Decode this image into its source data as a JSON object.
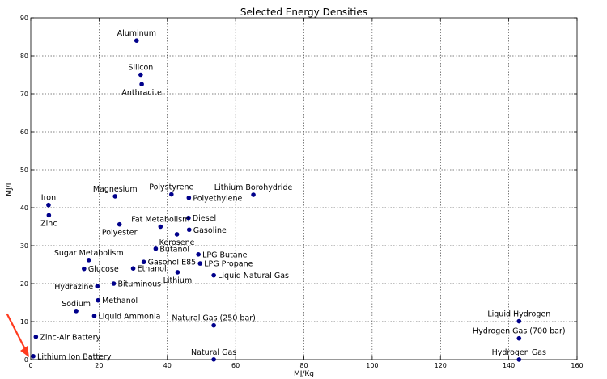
{
  "chart_data": {
    "type": "scatter",
    "title": "Selected Energy Densities",
    "xlabel": "MJ/Kg",
    "ylabel": "MJ/L",
    "xlim": [
      0,
      160
    ],
    "ylim": [
      0,
      90
    ],
    "xticks": [
      0,
      20,
      40,
      60,
      80,
      100,
      120,
      140,
      160
    ],
    "yticks": [
      0,
      10,
      20,
      30,
      40,
      50,
      60,
      70,
      80,
      90
    ],
    "grid": true,
    "marker_color": "#00008b",
    "annotation_color": "#ff3b1f",
    "points": [
      {
        "label": "Aluminum",
        "x": 31,
        "y": 84,
        "label_pos": "above"
      },
      {
        "label": "Silicon",
        "x": 32.2,
        "y": 75,
        "label_pos": "above"
      },
      {
        "label": "Anthracite",
        "x": 32.5,
        "y": 72.5,
        "label_pos": "below"
      },
      {
        "label": "Magnesium",
        "x": 24.7,
        "y": 43,
        "label_pos": "above"
      },
      {
        "label": "Polystyrene",
        "x": 41.2,
        "y": 43.5,
        "label_pos": "above"
      },
      {
        "label": "Polyethylene",
        "x": 46.3,
        "y": 42.6,
        "label_pos": "right"
      },
      {
        "label": "Lithium Borohydride",
        "x": 65.2,
        "y": 43.4,
        "label_pos": "above"
      },
      {
        "label": "Iron",
        "x": 5.2,
        "y": 40.7,
        "label_pos": "above"
      },
      {
        "label": "Zinc",
        "x": 5.3,
        "y": 38.0,
        "label_pos": "below"
      },
      {
        "label": "Diesel",
        "x": 46.2,
        "y": 37.3,
        "label_pos": "right"
      },
      {
        "label": "Fat Metabolism",
        "x": 38,
        "y": 35,
        "label_pos": "above"
      },
      {
        "label": "Gasoline",
        "x": 46.4,
        "y": 34.2,
        "label_pos": "right"
      },
      {
        "label": "Polyester",
        "x": 26,
        "y": 35.6,
        "label_pos": "below"
      },
      {
        "label": "Kerosene",
        "x": 42.8,
        "y": 33.0,
        "label_pos": "below"
      },
      {
        "label": "Butanol",
        "x": 36.6,
        "y": 29.2,
        "label_pos": "right"
      },
      {
        "label": "LPG Butane",
        "x": 49.1,
        "y": 27.7,
        "label_pos": "right"
      },
      {
        "label": "Sugar Metabolism",
        "x": 17,
        "y": 26.2,
        "label_pos": "above"
      },
      {
        "label": "Gasohol E85",
        "x": 33.1,
        "y": 25.7,
        "label_pos": "right"
      },
      {
        "label": "LPG Propane",
        "x": 49.6,
        "y": 25.3,
        "label_pos": "right"
      },
      {
        "label": "Glucose",
        "x": 15.6,
        "y": 23.9,
        "label_pos": "right"
      },
      {
        "label": "Ethanol",
        "x": 30,
        "y": 24,
        "label_pos": "right"
      },
      {
        "label": "Lithium",
        "x": 43,
        "y": 23.0,
        "label_pos": "below"
      },
      {
        "label": "Liquid Natural Gas",
        "x": 53.6,
        "y": 22.2,
        "label_pos": "right"
      },
      {
        "label": "Hydrazine",
        "x": 19.5,
        "y": 19.3,
        "label_pos": "left"
      },
      {
        "label": "Bituminous",
        "x": 24.3,
        "y": 20,
        "label_pos": "right"
      },
      {
        "label": "Methanol",
        "x": 19.7,
        "y": 15.6,
        "label_pos": "right"
      },
      {
        "label": "Sodium",
        "x": 13.3,
        "y": 12.8,
        "label_pos": "above"
      },
      {
        "label": "Liquid Ammonia",
        "x": 18.6,
        "y": 11.5,
        "label_pos": "right"
      },
      {
        "label": "Liquid Hydrogen",
        "x": 143,
        "y": 10.1,
        "label_pos": "above"
      },
      {
        "label": "Natural Gas (250 bar)",
        "x": 53.6,
        "y": 9,
        "label_pos": "above"
      },
      {
        "label": "Zinc-Air Battery",
        "x": 1.5,
        "y": 6.0,
        "label_pos": "right"
      },
      {
        "label": "Hydrogen Gas (700 bar)",
        "x": 143,
        "y": 5.6,
        "label_pos": "above"
      },
      {
        "label": "Lithium Ion Battery",
        "x": 0.72,
        "y": 0.9,
        "label_pos": "right"
      },
      {
        "label": "Natural Gas",
        "x": 53.6,
        "y": 0.04,
        "label_pos": "above"
      },
      {
        "label": "Hydrogen Gas",
        "x": 143,
        "y": 0.01,
        "label_pos": "above"
      }
    ]
  }
}
